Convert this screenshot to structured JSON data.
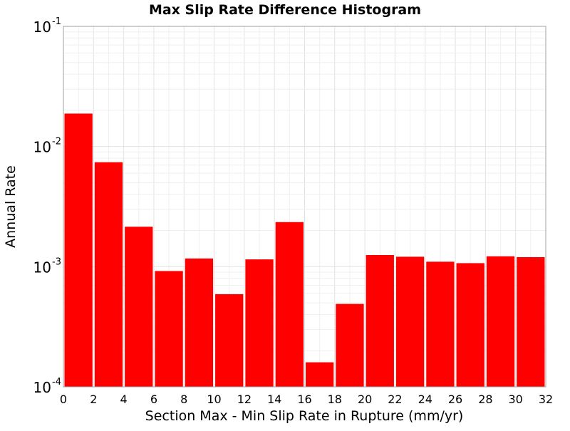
{
  "chart_data": {
    "type": "bar",
    "title": "Max Slip Rate Difference Histogram",
    "xlabel": "Section Max - Min Slip Rate in Rupture (mm/yr)",
    "ylabel": "Annual Rate",
    "y_scale": "log",
    "ylim": [
      0.0001,
      0.1
    ],
    "xlim": [
      0,
      32
    ],
    "bin_width": 2,
    "bar_color": "#ff0000",
    "grid": true,
    "x_ticks": [
      "0",
      "2",
      "4",
      "6",
      "8",
      "10",
      "12",
      "14",
      "16",
      "18",
      "20",
      "22",
      "24",
      "26",
      "28",
      "30",
      "32"
    ],
    "y_ticks": [
      {
        "base": "10",
        "exp": "-4",
        "value": 0.0001
      },
      {
        "base": "10",
        "exp": "-3",
        "value": 0.001
      },
      {
        "base": "10",
        "exp": "-2",
        "value": 0.01
      },
      {
        "base": "10",
        "exp": "-1",
        "value": 0.1
      }
    ],
    "x": [
      1,
      3,
      5,
      7,
      9,
      11,
      13,
      15,
      17,
      19,
      21,
      23,
      25,
      27,
      29,
      31
    ],
    "values": [
      0.0188,
      0.0074,
      0.00215,
      0.00092,
      0.00117,
      0.00059,
      0.00115,
      0.00235,
      0.00016,
      0.00049,
      0.00125,
      0.00121,
      0.0011,
      0.00107,
      0.00122,
      0.0012
    ]
  }
}
